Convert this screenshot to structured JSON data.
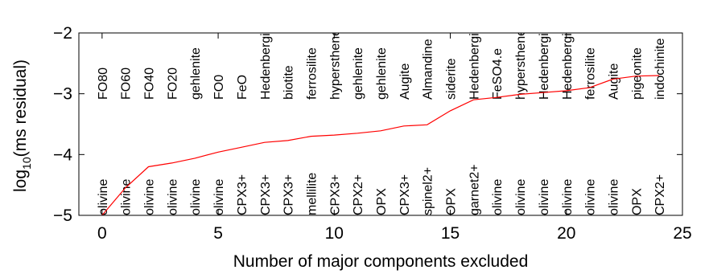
{
  "chart_data": {
    "type": "line",
    "title": "",
    "xlabel": "Number of major components excluded",
    "ylabel_base": "log",
    "ylabel_sub": "10",
    "ylabel_rest": "(ms residual)",
    "xlim": [
      -1,
      25
    ],
    "ylim": [
      -5,
      -2
    ],
    "xticks": [
      0,
      5,
      10,
      15,
      20,
      25
    ],
    "xtick_labels": [
      "0",
      "5",
      "10",
      "15",
      "20",
      "25"
    ],
    "yticks": [
      -5,
      -4,
      -3,
      -2
    ],
    "ytick_labels": [
      "−5",
      "−4",
      "−3",
      "−2"
    ],
    "grid": false,
    "line_color": "#ff0000",
    "series": [
      {
        "x": [
          0,
          1,
          2,
          3,
          4,
          5,
          6,
          7,
          8,
          9,
          10,
          11,
          12,
          13,
          14,
          15,
          16,
          17,
          18,
          19,
          20,
          21,
          22,
          23,
          24
        ],
        "y": [
          -5.0,
          -4.55,
          -4.2,
          -4.14,
          -4.06,
          -3.96,
          -3.88,
          -3.8,
          -3.77,
          -3.7,
          -3.68,
          -3.65,
          -3.61,
          -3.53,
          -3.51,
          -3.28,
          -3.1,
          -3.06,
          -3.01,
          -2.98,
          -2.95,
          -2.9,
          -2.76,
          -2.71,
          -2.7
        ]
      }
    ],
    "top_annotations": [
      "FO80",
      "FO60",
      "FO40",
      "FO20",
      "gehlenite",
      "FO0",
      "FeO",
      "Hedenbergite",
      "biotite",
      "ferrosilite",
      "hypersthene",
      "gehlenite",
      "gehlenite",
      "Augite",
      "Almandine",
      "siderite",
      "Hedenbergite",
      "FeSO4.e",
      "hypersthene",
      "Hedenbergite",
      "Hedenbergite",
      "ferrosilite",
      "Augite",
      "pigeonite",
      "indochinite"
    ],
    "bottom_annotations": [
      "olivine",
      "olivine",
      "olivine",
      "olivine",
      "olivine",
      "olivine",
      "CPX3+",
      "CPX3+",
      "CPX3+",
      "mellilite",
      "CPX3+",
      "CPX2+",
      "OPX",
      "CPX3+",
      "spinel2+",
      "OPX",
      "garnet2+",
      "olivine",
      "olivine",
      "olivine",
      "olivine",
      "olivine",
      "olivine",
      "OPX",
      "CPX2+"
    ]
  }
}
